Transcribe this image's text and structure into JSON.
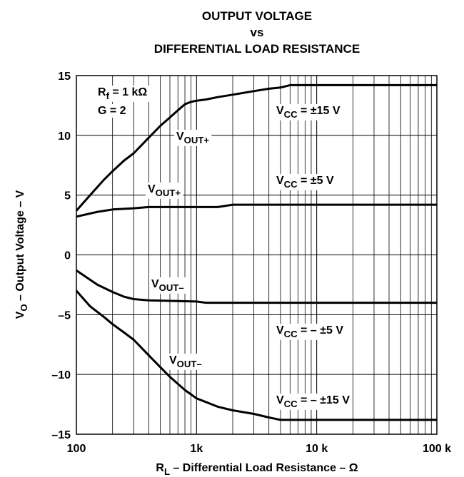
{
  "chart_data": {
    "type": "line",
    "title": [
      "OUTPUT VOLTAGE",
      "vs",
      "DIFFERENTIAL LOAD RESISTANCE"
    ],
    "xlabel": {
      "text": "R",
      "sub": "L",
      "suffix": "  – Differential Load Resistance – Ω"
    },
    "ylabel": {
      "text": "V",
      "sub": "O",
      "suffix": " – Output Voltage – V"
    },
    "xscale": "log",
    "xlim": [
      100,
      100000
    ],
    "xticks": [
      100,
      {
        "value": 1000,
        "label": "1k"
      },
      {
        "value": 10000,
        "label": "10 k"
      },
      {
        "value": 100000,
        "label": "100 k"
      }
    ],
    "ylim": [
      -15,
      15
    ],
    "yticks": [
      {
        "value": -15,
        "label": "–15"
      },
      {
        "value": -10,
        "label": "–10"
      },
      {
        "value": -5,
        "label": "–5"
      },
      0,
      5,
      10,
      15
    ],
    "grid": true,
    "series": [
      {
        "color": "#000000",
        "x": [
          100,
          130,
          170,
          200,
          250,
          300,
          400,
          500,
          600,
          700,
          800,
          900,
          1000,
          1200,
          1500,
          2000,
          3000,
          4000,
          5000,
          6000,
          10000,
          100000
        ],
        "values": [
          3.7,
          5.0,
          6.3,
          7.0,
          7.9,
          8.5,
          9.8,
          10.8,
          11.5,
          12.1,
          12.6,
          12.8,
          12.9,
          13.0,
          13.2,
          13.4,
          13.7,
          13.9,
          14.0,
          14.2,
          14.2,
          14.2
        ]
      },
      {
        "color": "#000000",
        "x": [
          100,
          150,
          200,
          300,
          400,
          1000,
          1500,
          2000,
          100000
        ],
        "values": [
          3.2,
          3.6,
          3.8,
          3.9,
          4.0,
          4.0,
          4.0,
          4.2,
          4.2
        ]
      },
      {
        "color": "#000000",
        "x": [
          100,
          150,
          200,
          250,
          300,
          400,
          1000,
          1200,
          100000
        ],
        "values": [
          -1.3,
          -2.5,
          -3.1,
          -3.5,
          -3.7,
          -3.8,
          -3.9,
          -4.0,
          -4.0
        ]
      },
      {
        "color": "#000000",
        "x": [
          100,
          130,
          170,
          200,
          250,
          300,
          400,
          500,
          600,
          800,
          1000,
          1500,
          2000,
          3000,
          4000,
          5000,
          100000
        ],
        "values": [
          -3.0,
          -4.3,
          -5.2,
          -5.8,
          -6.5,
          -7.1,
          -8.4,
          -9.4,
          -10.2,
          -11.3,
          -12.0,
          -12.7,
          -13.0,
          -13.3,
          -13.6,
          -13.8,
          -13.8
        ]
      }
    ],
    "annotations": [
      {
        "text": "R",
        "sub": "f",
        "suffix": " = 1 kΩ"
      },
      {
        "text": "G = 2"
      },
      {
        "text": "V",
        "sub": "OUT+"
      },
      {
        "text": "V",
        "sub": "CC",
        "suffix": " = ±15 V"
      },
      {
        "text": "V",
        "sub": "OUT+"
      },
      {
        "text": "V",
        "sub": "CC",
        "suffix": " = ±5 V"
      },
      {
        "text": "V",
        "sub": "OUT–"
      },
      {
        "text": "V",
        "sub": "CC",
        "suffix": " = – ±5 V"
      },
      {
        "text": "V",
        "sub": "OUT–"
      },
      {
        "text": "V",
        "sub": "CC",
        "suffix": " = – ±15 V"
      }
    ]
  }
}
